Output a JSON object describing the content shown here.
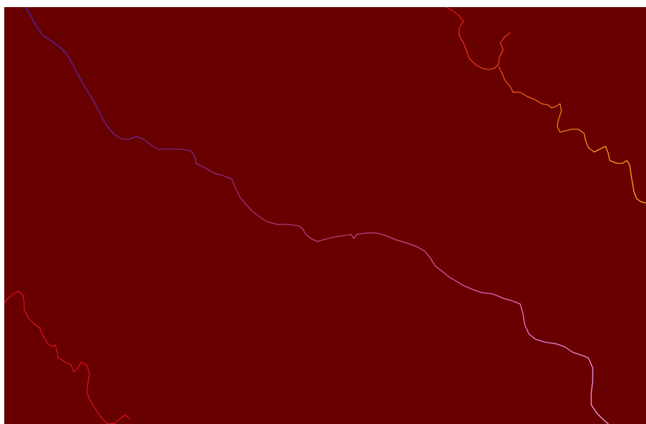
{
  "map": {
    "background_color": "#680000",
    "frame_color": "#ffffff"
  },
  "layers": [
    {
      "id": "main-river",
      "type": "polyline",
      "gradient": [
        "#3a2bbf",
        "#7a2a8a",
        "#c04080",
        "#e27ad0",
        "#f0a8f0"
      ]
    },
    {
      "id": "northeast-river",
      "type": "polyline",
      "gradient": [
        "#e0101a",
        "#e8581a",
        "#f0a020",
        "#f5b81a"
      ]
    },
    {
      "id": "southwest-river",
      "type": "polyline",
      "color": "#e8101a"
    }
  ]
}
